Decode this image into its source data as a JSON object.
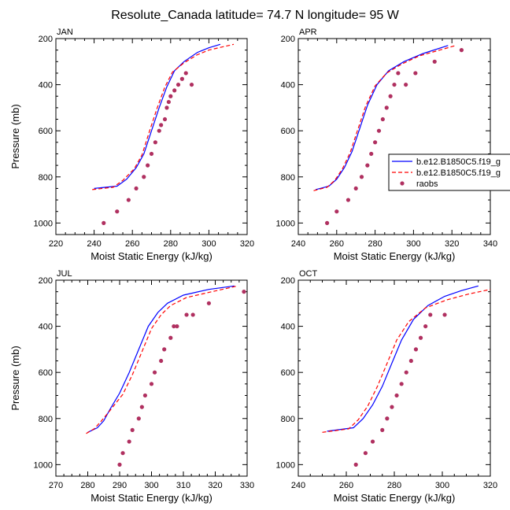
{
  "figure": {
    "title": "Resolute_Canada  latitude= 74.7 N longitude= 95 W"
  },
  "styles": {
    "series_colors": [
      "#0000ff",
      "#ff0000",
      "#b03060"
    ]
  },
  "legend": {
    "entries": [
      "b.e12.B1850C5.f19_g",
      "b.e12.B1850C5.f19_g",
      "raobs"
    ],
    "placement": "panel APR, right-center, clipped at figure edge"
  },
  "chart_data": [
    {
      "type": "line",
      "panel_label": "JAN",
      "xlabel": "Moist Static Energy (kJ/kg)",
      "ylabel": "Pressure (mb)",
      "xlim": [
        220,
        320
      ],
      "ylim": [
        200,
        1050
      ],
      "y_inverted": true,
      "xticks": [
        220,
        240,
        260,
        280,
        300,
        320
      ],
      "yticks": [
        200,
        400,
        600,
        800,
        1000
      ],
      "series": [
        {
          "kind": "line",
          "style": "solid",
          "color_index": 0,
          "x": [
            240,
            252,
            257,
            262,
            266,
            270,
            274,
            278,
            282,
            287,
            294,
            300,
            306
          ],
          "y": [
            850,
            840,
            810,
            760,
            700,
            600,
            500,
            410,
            340,
            300,
            260,
            240,
            225
          ]
        },
        {
          "kind": "line",
          "style": "dashed",
          "color_index": 1,
          "x": [
            239,
            250,
            255,
            261,
            265,
            269,
            273,
            277,
            281,
            287,
            294,
            300,
            313
          ],
          "y": [
            855,
            845,
            815,
            765,
            705,
            600,
            500,
            410,
            345,
            305,
            270,
            250,
            225
          ]
        },
        {
          "kind": "scatter",
          "color_index": 2,
          "x": [
            245,
            252,
            258,
            262,
            266,
            268,
            270,
            272,
            274,
            275,
            277,
            278,
            279,
            280,
            282,
            284,
            286,
            288,
            291
          ],
          "y": [
            1000,
            950,
            900,
            850,
            800,
            750,
            700,
            650,
            600,
            575,
            550,
            500,
            475,
            450,
            425,
            400,
            375,
            350,
            400
          ]
        }
      ]
    },
    {
      "type": "line",
      "panel_label": "APR",
      "xlabel": "Moist Static Energy (kJ/kg)",
      "ylabel": "",
      "xlim": [
        240,
        340
      ],
      "ylim": [
        200,
        1050
      ],
      "y_inverted": true,
      "xticks": [
        240,
        260,
        280,
        300,
        320,
        340
      ],
      "yticks": [
        200,
        400,
        600,
        800,
        1000
      ],
      "series": [
        {
          "kind": "line",
          "style": "solid",
          "color_index": 0,
          "x": [
            249,
            256,
            260,
            264,
            268,
            272,
            276,
            281,
            287,
            295,
            305,
            318
          ],
          "y": [
            855,
            840,
            810,
            760,
            690,
            590,
            490,
            400,
            340,
            300,
            265,
            230
          ]
        },
        {
          "kind": "line",
          "style": "dashed",
          "color_index": 1,
          "x": [
            248,
            255,
            259,
            263,
            267,
            271,
            275,
            280,
            286,
            294,
            303,
            322
          ],
          "y": [
            860,
            845,
            815,
            765,
            695,
            595,
            495,
            405,
            350,
            310,
            275,
            230
          ]
        },
        {
          "kind": "scatter",
          "color_index": 2,
          "x": [
            255,
            260,
            266,
            270,
            273,
            276,
            278,
            280,
            282,
            284,
            286,
            288,
            290,
            292,
            296,
            301,
            311,
            325
          ],
          "y": [
            1000,
            950,
            900,
            850,
            800,
            750,
            700,
            650,
            600,
            550,
            500,
            450,
            400,
            350,
            400,
            350,
            300,
            250
          ]
        }
      ]
    },
    {
      "type": "line",
      "panel_label": "JUL",
      "xlabel": "Moist Static Energy (kJ/kg)",
      "ylabel": "Pressure (mb)",
      "xlim": [
        270,
        330
      ],
      "ylim": [
        200,
        1050
      ],
      "y_inverted": true,
      "xticks": [
        270,
        280,
        290,
        300,
        310,
        320,
        330
      ],
      "yticks": [
        200,
        400,
        600,
        800,
        1000
      ],
      "series": [
        {
          "kind": "line",
          "style": "solid",
          "color_index": 0,
          "x": [
            280,
            283,
            285,
            287,
            290,
            293,
            296,
            299,
            302,
            305,
            310,
            318,
            326
          ],
          "y": [
            860,
            840,
            810,
            760,
            690,
            600,
            500,
            400,
            340,
            300,
            265,
            240,
            225
          ]
        },
        {
          "kind": "line",
          "style": "dashed",
          "color_index": 1,
          "x": [
            279.5,
            282,
            284,
            287,
            291,
            294,
            297,
            300,
            303,
            306,
            311,
            319,
            327
          ],
          "y": [
            865,
            845,
            815,
            765,
            695,
            610,
            510,
            410,
            350,
            310,
            275,
            250,
            225
          ]
        },
        {
          "kind": "scatter",
          "color_index": 2,
          "x": [
            290,
            291,
            293,
            294,
            296,
            297,
            298,
            300,
            301,
            303,
            304,
            306,
            307,
            308,
            311,
            313,
            318,
            329
          ],
          "y": [
            1000,
            950,
            900,
            850,
            800,
            750,
            700,
            650,
            600,
            550,
            500,
            450,
            400,
            400,
            350,
            350,
            300,
            250
          ]
        }
      ]
    },
    {
      "type": "line",
      "panel_label": "OCT",
      "xlabel": "Moist Static Energy (kJ/kg)",
      "ylabel": "",
      "xlim": [
        240,
        320
      ],
      "ylim": [
        200,
        1050
      ],
      "y_inverted": true,
      "xticks": [
        240,
        260,
        280,
        300,
        320
      ],
      "yticks": [
        200,
        400,
        600,
        800,
        1000
      ],
      "series": [
        {
          "kind": "line",
          "style": "solid",
          "color_index": 0,
          "x": [
            252,
            263,
            267,
            271,
            275,
            279,
            283,
            288,
            294,
            301,
            308,
            315
          ],
          "y": [
            855,
            840,
            800,
            740,
            660,
            560,
            460,
            370,
            310,
            270,
            245,
            225
          ]
        },
        {
          "kind": "line",
          "style": "dashed",
          "color_index": 1,
          "x": [
            250,
            261,
            265,
            269,
            273,
            277,
            281,
            286,
            293,
            302,
            311,
            320
          ],
          "y": [
            860,
            845,
            805,
            745,
            660,
            560,
            460,
            380,
            320,
            285,
            260,
            240
          ]
        },
        {
          "kind": "scatter",
          "color_index": 2,
          "x": [
            264,
            268,
            271,
            275,
            277,
            279,
            281,
            283,
            285,
            287,
            289,
            291,
            293,
            295,
            301
          ],
          "y": [
            1000,
            950,
            900,
            850,
            800,
            750,
            700,
            650,
            600,
            550,
            500,
            450,
            400,
            350,
            350
          ]
        }
      ]
    }
  ]
}
